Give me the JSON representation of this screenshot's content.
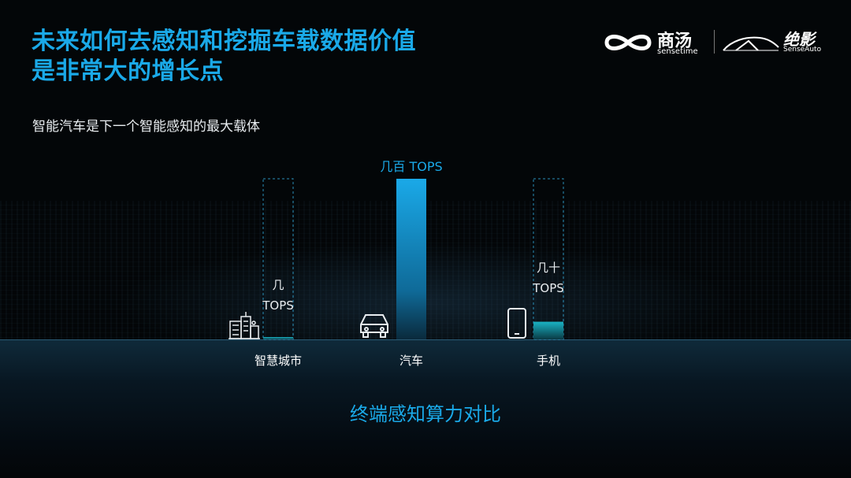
{
  "header": {
    "title_line1": "未来如何去感知和挖掘车载数据价值",
    "title_line2": "是非常大的增长点",
    "subtitle": "智能汽车是下一个智能感知的最大载体"
  },
  "logos": {
    "sensetime_name": "商汤",
    "sensetime_sub": "sensetime",
    "senseauto_name": "绝影",
    "senseauto_sub": "SenseAuto"
  },
  "chart_data": {
    "type": "bar",
    "title": "终端感知算力对比",
    "categories": [
      "智慧城市",
      "汽车",
      "手机"
    ],
    "series": [
      {
        "values": [
          1,
          100,
          11
        ]
      }
    ],
    "data_labels": [
      [
        "几",
        "TOPS"
      ],
      [
        "几百 TOPS"
      ],
      [
        "几十",
        "TOPS"
      ]
    ],
    "category_icons": [
      "city-building-icon",
      "car-icon",
      "phone-icon"
    ],
    "ylim": [
      0,
      100
    ],
    "grid": false,
    "colors": {
      "accent": "#1aa9e8",
      "bar_top": "#1aa9e8",
      "bar_bottom": "#0a3a55",
      "outline": "#2a8fb8",
      "small_bar": "#1ab3c4"
    }
  }
}
